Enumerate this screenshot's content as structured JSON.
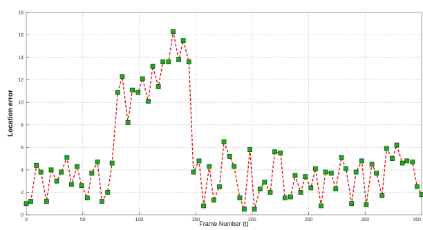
{
  "chart_data": {
    "type": "line",
    "title": "",
    "xlabel": "Frame Number (t)",
    "ylabel": "Location error",
    "xlim": [
      0,
      350
    ],
    "ylim": [
      0,
      18
    ],
    "x_ticks": [
      "0",
      "50",
      "100",
      "150",
      "200",
      "250",
      "300",
      "350"
    ],
    "y_ticks": [
      "0",
      "2",
      "4",
      "6",
      "8",
      "10",
      "12",
      "14",
      "16",
      "18"
    ],
    "grid": "dotted",
    "line_color": "#e01010",
    "marker_color": "#22aa22",
    "series": [
      {
        "x": [
          0,
          4,
          9,
          13,
          18,
          22,
          27,
          31,
          36,
          40,
          45,
          49,
          54,
          58,
          63,
          67,
          72,
          76,
          81,
          85,
          90,
          94,
          99,
          103,
          108,
          112,
          117,
          121,
          126,
          130,
          135,
          139,
          144,
          148,
          153,
          157,
          162,
          166,
          171,
          175,
          180,
          184,
          189,
          193,
          198,
          202,
          207,
          211,
          216,
          220,
          225,
          229,
          234,
          238,
          243,
          247,
          252,
          256,
          261,
          265,
          270,
          274,
          279,
          283,
          288,
          292,
          297,
          301,
          306,
          310,
          315,
          319,
          324,
          328,
          333,
          337,
          342,
          346,
          350
        ],
        "y": [
          1.0,
          1.2,
          4.4,
          3.8,
          1.2,
          4.0,
          3.0,
          3.8,
          5.1,
          2.7,
          4.3,
          2.6,
          1.5,
          3.7,
          4.7,
          1.2,
          2.0,
          4.6,
          10.9,
          12.3,
          8.2,
          11.1,
          10.9,
          12.1,
          10.1,
          13.2,
          11.4,
          13.6,
          13.6,
          16.3,
          13.8,
          15.5,
          13.6,
          3.8,
          4.8,
          0.8,
          4.3,
          1.3,
          2.5,
          6.5,
          5.2,
          4.3,
          1.5,
          0.5,
          5.8,
          0.5,
          2.3,
          2.9,
          2.0,
          5.6,
          5.5,
          1.5,
          1.6,
          3.5,
          2.0,
          3.4,
          2.4,
          4.1,
          0.8,
          3.8,
          3.7,
          2.3,
          5.1,
          4.1,
          1.0,
          3.8,
          4.8,
          0.9,
          4.5,
          3.7,
          1.7,
          5.9,
          5.0,
          6.2,
          4.6,
          4.8,
          4.7,
          2.5,
          1.8
        ]
      }
    ]
  }
}
